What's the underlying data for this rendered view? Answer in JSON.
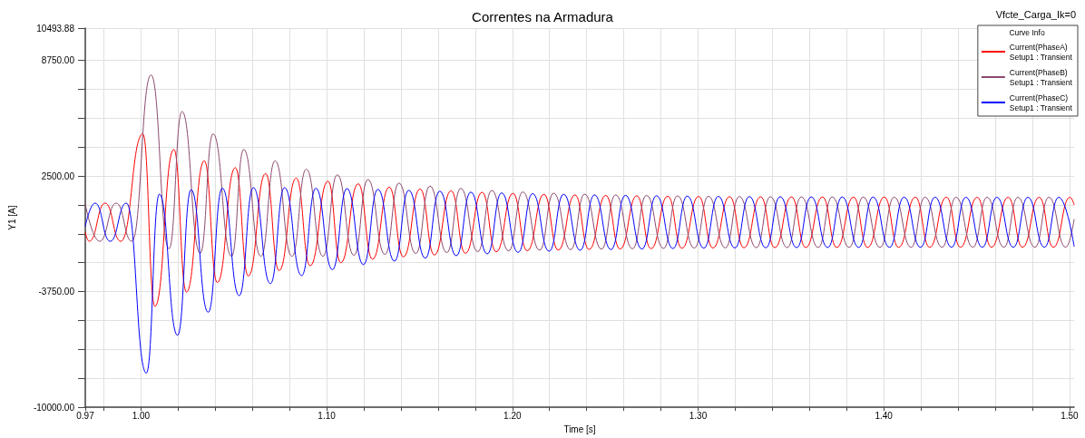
{
  "chart_data": {
    "type": "line",
    "title": "Correntes na Armadura",
    "subtitle": "Vfcte_Carga_Ik=0",
    "xlabel": "Time [s]",
    "ylabel": "Y1 [A]",
    "legend_title": "Curve Info",
    "legend": "top right",
    "grid": true,
    "xlim": [
      0.97,
      1.5025
    ],
    "ylim": [
      -10000,
      10493.88
    ],
    "xticks": [
      {
        "value": 0.97,
        "label": "0.97"
      },
      {
        "value": 0.98,
        "label": null
      },
      {
        "value": 1.0,
        "label": "1.00"
      },
      {
        "value": 1.02,
        "label": null
      },
      {
        "value": 1.04,
        "label": null
      },
      {
        "value": 1.06,
        "label": null
      },
      {
        "value": 1.08,
        "label": null
      },
      {
        "value": 1.1,
        "label": "1.10"
      },
      {
        "value": 1.12,
        "label": null
      },
      {
        "value": 1.14,
        "label": null
      },
      {
        "value": 1.16,
        "label": null
      },
      {
        "value": 1.18,
        "label": null
      },
      {
        "value": 1.2,
        "label": "1.20"
      },
      {
        "value": 1.22,
        "label": null
      },
      {
        "value": 1.24,
        "label": null
      },
      {
        "value": 1.26,
        "label": null
      },
      {
        "value": 1.28,
        "label": null
      },
      {
        "value": 1.3,
        "label": "1.30"
      },
      {
        "value": 1.32,
        "label": null
      },
      {
        "value": 1.34,
        "label": null
      },
      {
        "value": 1.36,
        "label": null
      },
      {
        "value": 1.38,
        "label": null
      },
      {
        "value": 1.4,
        "label": "1.40"
      },
      {
        "value": 1.42,
        "label": null
      },
      {
        "value": 1.44,
        "label": null
      },
      {
        "value": 1.46,
        "label": null
      },
      {
        "value": 1.48,
        "label": null
      },
      {
        "value": 1.5,
        "label": "1.50"
      }
    ],
    "yticks": [
      {
        "value": -10000,
        "label": "-10000.00"
      },
      {
        "value": -8437.5,
        "label": null
      },
      {
        "value": -6875,
        "label": null
      },
      {
        "value": -5312.5,
        "label": null
      },
      {
        "value": -3750,
        "label": "-3750.00"
      },
      {
        "value": -2187.5,
        "label": null
      },
      {
        "value": -625,
        "label": null
      },
      {
        "value": 937.5,
        "label": null
      },
      {
        "value": 2500,
        "label": "2500.00"
      },
      {
        "value": 4062.5,
        "label": null
      },
      {
        "value": 5625,
        "label": null
      },
      {
        "value": 7187.5,
        "label": null
      },
      {
        "value": 8750,
        "label": "8750.00"
      },
      {
        "value": 10493.88,
        "label": "10493.88"
      }
    ],
    "series": [
      {
        "name": "Current(PhaseA)\nSetup1 : Transient",
        "color": "#ff0000",
        "x": [
          0.97,
          0.9721,
          0.9807,
          0.9891,
          1.001,
          1.0075,
          1.0177,
          1.0245,
          1.0341,
          1.0411,
          1.0508,
          1.0578,
          1.0671,
          1.0744,
          1.0836,
          1.0911,
          1.1007,
          1.1076,
          1.117,
          1.1247,
          1.1337,
          1.1413,
          1.1503,
          1.158,
          1.167,
          1.1747,
          1.1837,
          1.1913,
          1.2003,
          1.208,
          1.217,
          1.2247,
          1.2337,
          1.2413,
          1.2503,
          1.258,
          1.267,
          1.2747,
          1.2837,
          1.2913,
          1.3003,
          1.308,
          1.317,
          1.3247,
          1.3337,
          1.3413,
          1.3503,
          1.358,
          1.367,
          1.3747,
          1.3837,
          1.3913,
          1.4003,
          1.408,
          1.417,
          1.4247,
          1.4337,
          1.4413,
          1.4503,
          1.458,
          1.467,
          1.4747,
          1.4837,
          1.4913,
          1.5003,
          1.5025
        ],
        "values": [
          -545,
          -1030,
          1035,
          -1030,
          4775,
          -4545,
          3935,
          -3770,
          3320,
          -3255,
          2950,
          -2900,
          2630,
          -2610,
          2390,
          -2350,
          2225,
          -2190,
          2080,
          -2000,
          1900,
          -1870,
          1800,
          -1770,
          1700,
          -1680,
          1620,
          -1600,
          1560,
          -1540,
          1510,
          -1500,
          1480,
          -1470,
          1450,
          -1445,
          1430,
          -1425,
          1410,
          -1405,
          1395,
          -1390,
          1385,
          -1380,
          1375,
          -1370,
          1370,
          -1365,
          1365,
          -1360,
          1360,
          -1360,
          1360,
          -1355,
          1355,
          -1355,
          1355,
          -1350,
          1350,
          -1350,
          1350,
          -1350,
          1350,
          -1350,
          1350,
          950
        ]
      },
      {
        "name": "Current(PhaseB)\nSetup1 : Transient",
        "color": "#8c4a6e",
        "x": [
          0.97,
          0.9777,
          0.9867,
          0.9951,
          1.0054,
          1.0151,
          1.0221,
          1.0319,
          1.0388,
          1.0488,
          1.0553,
          1.0646,
          1.0722,
          1.0813,
          1.089,
          1.098,
          1.1057,
          1.1147,
          1.1222,
          1.1314,
          1.1389,
          1.148,
          1.1556,
          1.1647,
          1.1722,
          1.1814,
          1.1889,
          1.198,
          1.2056,
          1.2147,
          1.2222,
          1.2314,
          1.2389,
          1.248,
          1.2556,
          1.2647,
          1.2722,
          1.2814,
          1.2889,
          1.298,
          1.3056,
          1.3147,
          1.3222,
          1.3314,
          1.3389,
          1.348,
          1.3556,
          1.3647,
          1.3722,
          1.3814,
          1.3889,
          1.398,
          1.4056,
          1.4147,
          1.4222,
          1.4314,
          1.4389,
          1.448,
          1.4556,
          1.4647,
          1.4722,
          1.4814,
          1.4889,
          1.498,
          1.5025
        ],
        "values": [
          990,
          -1030,
          1035,
          -1030,
          7965,
          -1430,
          5985,
          -1675,
          4775,
          -1840,
          3935,
          -1840,
          3320,
          -1840,
          2870,
          -1840,
          2565,
          -1790,
          2310,
          -1740,
          2120,
          -1690,
          1960,
          -1640,
          1830,
          -1590,
          1720,
          -1550,
          1640,
          -1510,
          1570,
          -1480,
          1520,
          -1450,
          1480,
          -1430,
          1450,
          -1410,
          1425,
          -1395,
          1405,
          -1385,
          1390,
          -1375,
          1380,
          -1370,
          1370,
          -1365,
          1365,
          -1360,
          1360,
          -1360,
          1355,
          -1355,
          1355,
          -1355,
          1350,
          -1350,
          1350,
          -1350,
          1350,
          -1350,
          1350,
          -1350,
          150
        ]
      },
      {
        "name": "Current(PhaseC)\nSetup1 : Transient",
        "color": "#0000ff",
        "x": [
          0.97,
          0.9753,
          0.9834,
          0.9921,
          1.0029,
          1.0099,
          1.0197,
          1.027,
          1.0362,
          1.0438,
          1.0529,
          1.0605,
          1.0697,
          1.0773,
          1.0865,
          1.0942,
          1.1031,
          1.1109,
          1.1198,
          1.1276,
          1.1365,
          1.1442,
          1.1531,
          1.1609,
          1.1698,
          1.1776,
          1.1865,
          1.1942,
          1.2031,
          1.2109,
          1.2198,
          1.2276,
          1.2365,
          1.2442,
          1.2531,
          1.2609,
          1.2698,
          1.2776,
          1.2865,
          1.2942,
          1.3031,
          1.3109,
          1.3198,
          1.3276,
          1.3365,
          1.3442,
          1.3531,
          1.3609,
          1.3698,
          1.3776,
          1.3865,
          1.3942,
          1.4031,
          1.4109,
          1.4198,
          1.4276,
          1.4365,
          1.4442,
          1.4531,
          1.4609,
          1.4698,
          1.4776,
          1.4865,
          1.4942,
          1.5025
        ],
        "values": [
          -210,
          1035,
          -1030,
          1035,
          -8155,
          1520,
          -6110,
          1760,
          -4865,
          1840,
          -3965,
          1870,
          -3320,
          1870,
          -2885,
          1840,
          -2565,
          1820,
          -2290,
          1780,
          -2100,
          1730,
          -1940,
          1680,
          -1810,
          1630,
          -1710,
          1590,
          -1630,
          1550,
          -1565,
          1510,
          -1515,
          1480,
          -1475,
          1455,
          -1445,
          1435,
          -1420,
          1415,
          -1400,
          1400,
          -1390,
          1390,
          -1380,
          1380,
          -1370,
          1370,
          -1365,
          1365,
          -1360,
          1360,
          -1355,
          1355,
          -1355,
          1355,
          -1350,
          1350,
          -1350,
          1350,
          -1350,
          1350,
          -1350,
          1350,
          -1300
        ]
      }
    ]
  }
}
